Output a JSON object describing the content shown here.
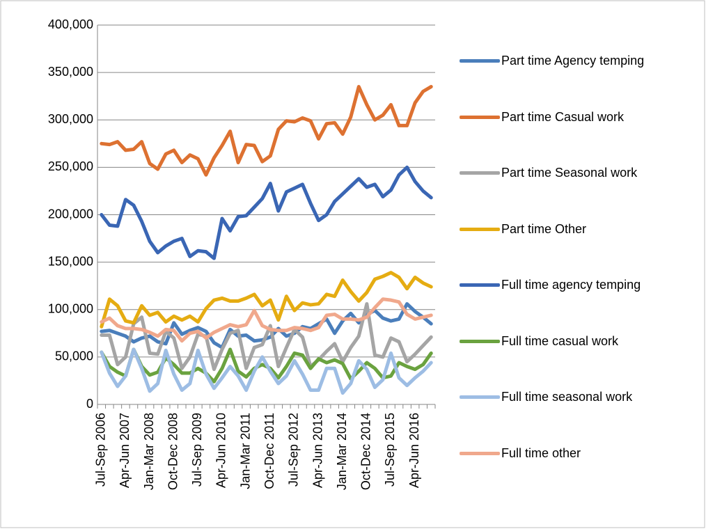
{
  "chart_data": {
    "type": "line",
    "categories": [
      "Jul-Sep 2006",
      null,
      null,
      "Apr-Jun 2007",
      null,
      null,
      "Jan-Mar 2008",
      null,
      null,
      "Oct-Dec 2008",
      null,
      null,
      "Jul-Sep 2009",
      null,
      null,
      "Apr-Jun 2010",
      null,
      null,
      "Jan-Mar 2011",
      null,
      null,
      "Oct-Dec 2011",
      null,
      null,
      "Jul-Sep 2012",
      null,
      null,
      "Apr-Jun 2013",
      null,
      null,
      "Jan-Mar 2014",
      null,
      null,
      "Oct-Dec 2014",
      null,
      null,
      "Jul-Sep 2015",
      null,
      null,
      "Apr-Jun 2016",
      null,
      null
    ],
    "ylim": [
      0,
      400000
    ],
    "yticks": [
      0,
      {
        "value": 50000,
        "label": "50,000"
      },
      {
        "value": 100000,
        "label": "100,000"
      },
      {
        "value": 150000,
        "label": "150,000"
      },
      {
        "value": 200000,
        "label": "200,000"
      },
      {
        "value": 250000,
        "label": "250,000"
      },
      {
        "value": 300000,
        "label": "300,000"
      },
      {
        "value": 350000,
        "label": "350,000"
      },
      {
        "value": 400000,
        "label": "400,000"
      }
    ],
    "grid": true,
    "legend": "right",
    "series": [
      {
        "name": "Part time Agency temping",
        "color": "#4a7ebb",
        "values": [
          77000,
          78000,
          75000,
          72000,
          66000,
          70000,
          72000,
          66000,
          64000,
          86000,
          74000,
          78000,
          81000,
          77000,
          65000,
          60000,
          79000,
          72000,
          73000,
          67000,
          68000,
          71000,
          80000,
          72000,
          75000,
          82000,
          80000,
          85000,
          90000,
          75000,
          88000,
          96000,
          86000,
          95000,
          99000,
          91000,
          88000,
          90000,
          106000,
          98000,
          92000,
          85000
        ]
      },
      {
        "name": "Part time Casual work",
        "color": "#dd7131",
        "values": [
          275000,
          274000,
          277000,
          268000,
          269000,
          277000,
          254000,
          248000,
          264000,
          268000,
          255000,
          263000,
          259000,
          242000,
          260000,
          273000,
          288000,
          255000,
          274000,
          273000,
          256000,
          262000,
          290000,
          299000,
          298000,
          302000,
          299000,
          280000,
          296000,
          297000,
          285000,
          303000,
          335000,
          316000,
          300000,
          305000,
          316000,
          294000,
          294000,
          318000,
          330000,
          335000
        ]
      },
      {
        "name": "Part time Seasonal work",
        "color": "#a5a5a5",
        "values": [
          73000,
          73000,
          42000,
          50000,
          85000,
          92000,
          54000,
          53000,
          77000,
          70000,
          38000,
          50000,
          74000,
          72000,
          37000,
          58000,
          75000,
          78000,
          38000,
          60000,
          63000,
          83000,
          40000,
          60000,
          79000,
          71000,
          40000,
          47000,
          56000,
          64000,
          45000,
          60000,
          72000,
          106000,
          52000,
          50000,
          70000,
          66000,
          45000,
          53000,
          62000,
          71000
        ]
      },
      {
        "name": "Part time Other",
        "color": "#e5ac12",
        "values": [
          82000,
          111000,
          104000,
          88000,
          86000,
          104000,
          94000,
          97000,
          87000,
          93000,
          89000,
          93000,
          87000,
          101000,
          110000,
          112000,
          109000,
          109000,
          112000,
          116000,
          104000,
          110000,
          89000,
          114000,
          99000,
          107000,
          105000,
          106000,
          116000,
          114000,
          131000,
          119000,
          109000,
          118000,
          132000,
          135000,
          139000,
          134000,
          122000,
          134000,
          128000,
          124000
        ]
      },
      {
        "name": "Full time agency temping",
        "color": "#3a66b4",
        "values": [
          200000,
          189000,
          188000,
          216000,
          210000,
          193000,
          172000,
          160000,
          167000,
          172000,
          175000,
          156000,
          162000,
          161000,
          154000,
          196000,
          183000,
          198000,
          199000,
          208000,
          217000,
          233000,
          204000,
          224000,
          228000,
          232000,
          212000,
          194000,
          200000,
          214000,
          222000,
          230000,
          238000,
          229000,
          232000,
          219000,
          226000,
          242000,
          250000,
          235000,
          225000,
          218000
        ]
      },
      {
        "name": "Full time casual work",
        "color": "#6aa23f",
        "values": [
          55000,
          40000,
          34000,
          30000,
          58000,
          40000,
          31000,
          34000,
          49000,
          42000,
          33000,
          33000,
          38000,
          33000,
          24000,
          38000,
          58000,
          35000,
          29000,
          38000,
          42000,
          38000,
          28000,
          40000,
          54000,
          52000,
          38000,
          48000,
          44000,
          47000,
          43000,
          27000,
          35000,
          44000,
          38000,
          28000,
          30000,
          44000,
          40000,
          37000,
          42000,
          54000
        ]
      },
      {
        "name": "Full time seasonal work",
        "color": "#9dbde4",
        "values": [
          55000,
          33000,
          19000,
          30000,
          58000,
          38000,
          14000,
          22000,
          57000,
          32000,
          15000,
          22000,
          57000,
          32000,
          17000,
          28000,
          40000,
          30000,
          15000,
          35000,
          50000,
          35000,
          22000,
          30000,
          46000,
          32000,
          15000,
          15000,
          38000,
          38000,
          12000,
          22000,
          46000,
          37000,
          18000,
          26000,
          54000,
          28000,
          20000,
          28000,
          35000,
          44000
        ]
      },
      {
        "name": "Full time other",
        "color": "#f0a88c",
        "values": [
          87000,
          91000,
          83000,
          80000,
          80000,
          79000,
          76000,
          72000,
          79000,
          78000,
          67000,
          75000,
          77000,
          70000,
          76000,
          80000,
          84000,
          82000,
          84000,
          99000,
          83000,
          79000,
          78000,
          78000,
          81000,
          80000,
          78000,
          81000,
          94000,
          95000,
          90000,
          90000,
          89000,
          92000,
          102000,
          111000,
          110000,
          108000,
          95000,
          90000,
          92000,
          94000
        ]
      }
    ]
  }
}
